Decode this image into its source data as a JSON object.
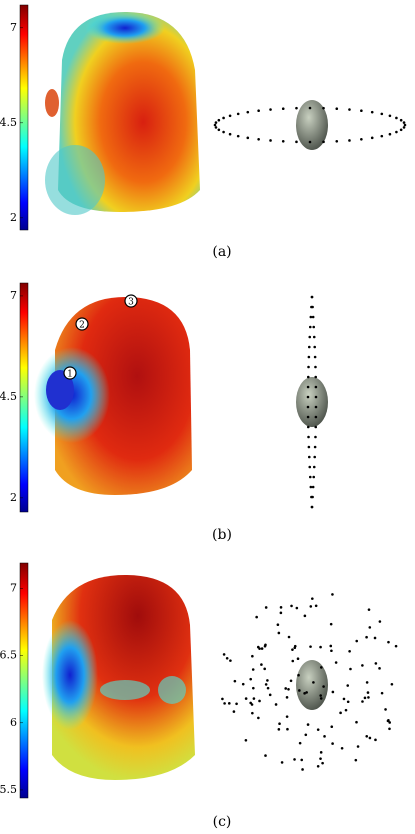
{
  "panels": [
    {
      "label": "(a)",
      "colorbar": {
        "lim": [
          1.68,
          7.6
        ],
        "ticks": [
          7,
          4.5,
          2
        ]
      }
    },
    {
      "label": "(b)",
      "colorbar": {
        "lim": [
          1.65,
          7.32
        ],
        "ticks": [
          7,
          4.5,
          2
        ]
      },
      "markers": [
        "1",
        "2",
        "3"
      ]
    },
    {
      "label": "(c)",
      "colorbar": {
        "lim": [
          5.44,
          7.19
        ],
        "ticks": [
          7,
          6.5,
          6,
          5.5
        ]
      }
    }
  ]
}
